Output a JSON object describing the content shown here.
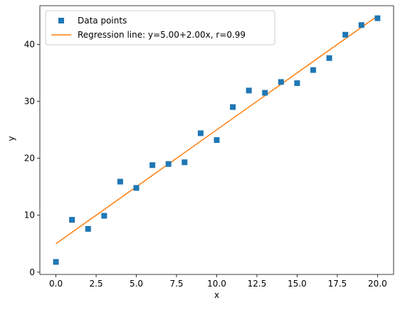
{
  "chart_data": {
    "type": "scatter",
    "xlabel": "x",
    "ylabel": "y",
    "xlim": [
      -1.0,
      21.0
    ],
    "ylim": [
      -0.4,
      46.8
    ],
    "xticks": [
      0.0,
      2.5,
      5.0,
      7.5,
      10.0,
      12.5,
      15.0,
      17.5,
      20.0
    ],
    "xtick_labels": [
      "0.0",
      "2.5",
      "5.0",
      "7.5",
      "10.0",
      "12.5",
      "15.0",
      "17.5",
      "20.0"
    ],
    "yticks": [
      0,
      10,
      20,
      30,
      40
    ],
    "ytick_labels": [
      "0",
      "10",
      "20",
      "30",
      "40"
    ],
    "grid": false,
    "legend_position": "upper-left",
    "series": [
      {
        "name": "Data points",
        "kind": "scatter",
        "marker": "square",
        "color": "#1f77b4",
        "x": [
          0,
          1,
          2,
          3,
          4,
          5,
          6,
          7,
          8,
          9,
          10,
          11,
          12,
          13,
          14,
          15,
          16,
          17,
          18,
          19,
          20
        ],
        "y": [
          1.8,
          9.2,
          7.6,
          9.9,
          15.9,
          14.8,
          18.8,
          19.0,
          19.3,
          24.4,
          23.2,
          29.0,
          31.9,
          31.5,
          33.4,
          33.2,
          35.5,
          37.6,
          41.7,
          43.4,
          44.6
        ]
      },
      {
        "name": "Regression line: y=5.00+2.00x, r=0.99",
        "kind": "line",
        "color": "#ff7f0e",
        "x": [
          0,
          20
        ],
        "y": [
          5.0,
          45.0
        ]
      }
    ]
  }
}
